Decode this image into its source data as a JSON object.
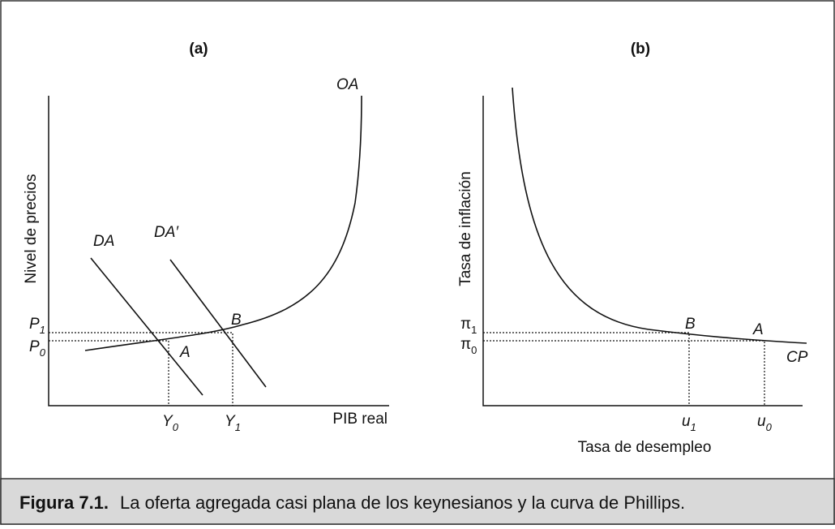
{
  "panel_a": {
    "title": "(a)",
    "y_axis_label": "Nivel de precios",
    "x_axis_label": "PIB real",
    "curves": {
      "supply": "OA",
      "demand": "DA",
      "demand_shifted": "DA′"
    },
    "points": {
      "a": "A",
      "b": "B"
    },
    "ticks": {
      "p1": {
        "main": "P",
        "sub": "1"
      },
      "p0": {
        "main": "P",
        "sub": "0"
      },
      "y0": {
        "main": "Y",
        "sub": "0"
      },
      "y1": {
        "main": "Y",
        "sub": "1"
      }
    }
  },
  "panel_b": {
    "title": "(b)",
    "y_axis_label": "Tasa de inflación",
    "x_axis_label": "Tasa de desempleo",
    "curves": {
      "phillips": "CP"
    },
    "points": {
      "a": "A",
      "b": "B"
    },
    "ticks": {
      "pi1": {
        "main": "π",
        "sub": "1"
      },
      "pi0": {
        "main": "π",
        "sub": "0"
      },
      "u1": {
        "main": "u",
        "sub": "1"
      },
      "u0": {
        "main": "u",
        "sub": "0"
      }
    }
  },
  "caption": {
    "label": "Figura 7.1.",
    "text": "La oferta agregada casi plana de los keynesianos y la curva de Phillips."
  }
}
